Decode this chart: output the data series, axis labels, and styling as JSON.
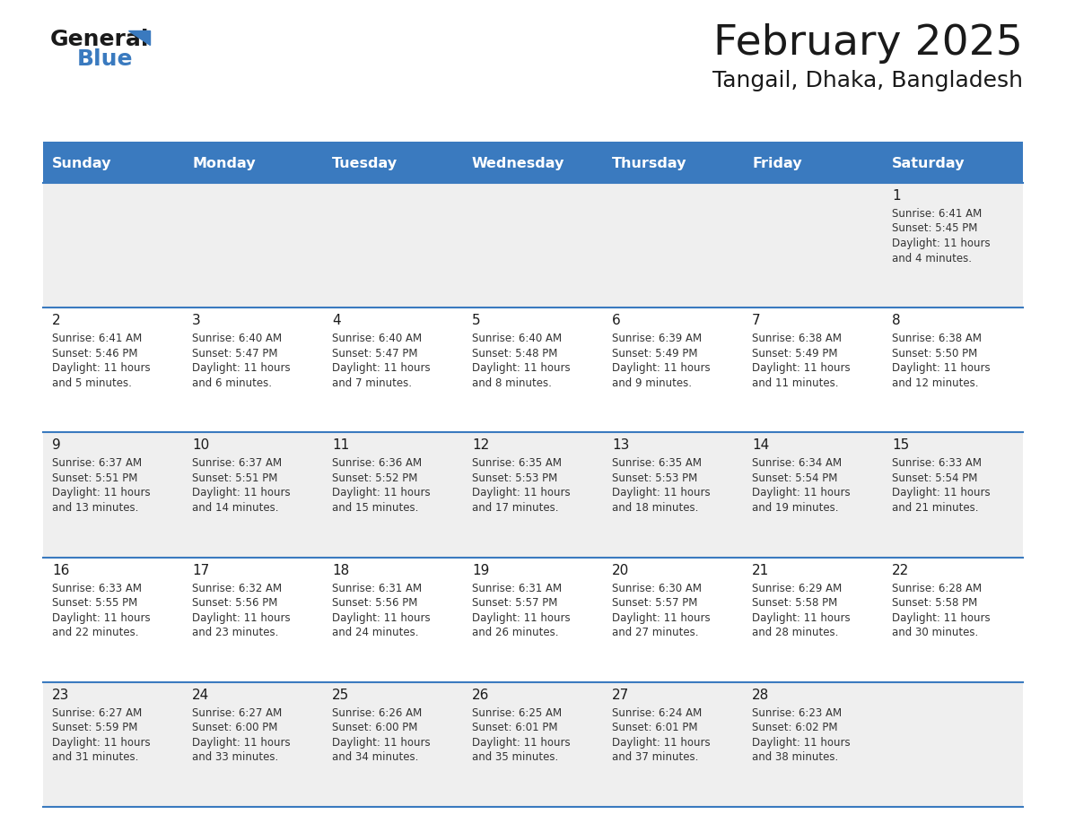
{
  "title": "February 2025",
  "subtitle": "Tangail, Dhaka, Bangladesh",
  "header_color": "#3a7abf",
  "header_text_color": "#ffffff",
  "row_bg_colors": [
    "#efefef",
    "#ffffff",
    "#efefef",
    "#ffffff",
    "#efefef"
  ],
  "day_number_color": "#1a1a1a",
  "info_text_color": "#333333",
  "border_color": "#3a7abf",
  "days_of_week": [
    "Sunday",
    "Monday",
    "Tuesday",
    "Wednesday",
    "Thursday",
    "Friday",
    "Saturday"
  ],
  "calendar": [
    [
      null,
      null,
      null,
      null,
      null,
      null,
      1
    ],
    [
      2,
      3,
      4,
      5,
      6,
      7,
      8
    ],
    [
      9,
      10,
      11,
      12,
      13,
      14,
      15
    ],
    [
      16,
      17,
      18,
      19,
      20,
      21,
      22
    ],
    [
      23,
      24,
      25,
      26,
      27,
      28,
      null
    ]
  ],
  "sun_data": {
    "1": {
      "rise": "6:41 AM",
      "set": "5:45 PM",
      "day_hours": 11,
      "day_mins": 4
    },
    "2": {
      "rise": "6:41 AM",
      "set": "5:46 PM",
      "day_hours": 11,
      "day_mins": 5
    },
    "3": {
      "rise": "6:40 AM",
      "set": "5:47 PM",
      "day_hours": 11,
      "day_mins": 6
    },
    "4": {
      "rise": "6:40 AM",
      "set": "5:47 PM",
      "day_hours": 11,
      "day_mins": 7
    },
    "5": {
      "rise": "6:40 AM",
      "set": "5:48 PM",
      "day_hours": 11,
      "day_mins": 8
    },
    "6": {
      "rise": "6:39 AM",
      "set": "5:49 PM",
      "day_hours": 11,
      "day_mins": 9
    },
    "7": {
      "rise": "6:38 AM",
      "set": "5:49 PM",
      "day_hours": 11,
      "day_mins": 11
    },
    "8": {
      "rise": "6:38 AM",
      "set": "5:50 PM",
      "day_hours": 11,
      "day_mins": 12
    },
    "9": {
      "rise": "6:37 AM",
      "set": "5:51 PM",
      "day_hours": 11,
      "day_mins": 13
    },
    "10": {
      "rise": "6:37 AM",
      "set": "5:51 PM",
      "day_hours": 11,
      "day_mins": 14
    },
    "11": {
      "rise": "6:36 AM",
      "set": "5:52 PM",
      "day_hours": 11,
      "day_mins": 15
    },
    "12": {
      "rise": "6:35 AM",
      "set": "5:53 PM",
      "day_hours": 11,
      "day_mins": 17
    },
    "13": {
      "rise": "6:35 AM",
      "set": "5:53 PM",
      "day_hours": 11,
      "day_mins": 18
    },
    "14": {
      "rise": "6:34 AM",
      "set": "5:54 PM",
      "day_hours": 11,
      "day_mins": 19
    },
    "15": {
      "rise": "6:33 AM",
      "set": "5:54 PM",
      "day_hours": 11,
      "day_mins": 21
    },
    "16": {
      "rise": "6:33 AM",
      "set": "5:55 PM",
      "day_hours": 11,
      "day_mins": 22
    },
    "17": {
      "rise": "6:32 AM",
      "set": "5:56 PM",
      "day_hours": 11,
      "day_mins": 23
    },
    "18": {
      "rise": "6:31 AM",
      "set": "5:56 PM",
      "day_hours": 11,
      "day_mins": 24
    },
    "19": {
      "rise": "6:31 AM",
      "set": "5:57 PM",
      "day_hours": 11,
      "day_mins": 26
    },
    "20": {
      "rise": "6:30 AM",
      "set": "5:57 PM",
      "day_hours": 11,
      "day_mins": 27
    },
    "21": {
      "rise": "6:29 AM",
      "set": "5:58 PM",
      "day_hours": 11,
      "day_mins": 28
    },
    "22": {
      "rise": "6:28 AM",
      "set": "5:58 PM",
      "day_hours": 11,
      "day_mins": 30
    },
    "23": {
      "rise": "6:27 AM",
      "set": "5:59 PM",
      "day_hours": 11,
      "day_mins": 31
    },
    "24": {
      "rise": "6:27 AM",
      "set": "6:00 PM",
      "day_hours": 11,
      "day_mins": 33
    },
    "25": {
      "rise": "6:26 AM",
      "set": "6:00 PM",
      "day_hours": 11,
      "day_mins": 34
    },
    "26": {
      "rise": "6:25 AM",
      "set": "6:01 PM",
      "day_hours": 11,
      "day_mins": 35
    },
    "27": {
      "rise": "6:24 AM",
      "set": "6:01 PM",
      "day_hours": 11,
      "day_mins": 37
    },
    "28": {
      "rise": "6:23 AM",
      "set": "6:02 PM",
      "day_hours": 11,
      "day_mins": 38
    }
  },
  "fig_width": 11.88,
  "fig_height": 9.18,
  "dpi": 100
}
